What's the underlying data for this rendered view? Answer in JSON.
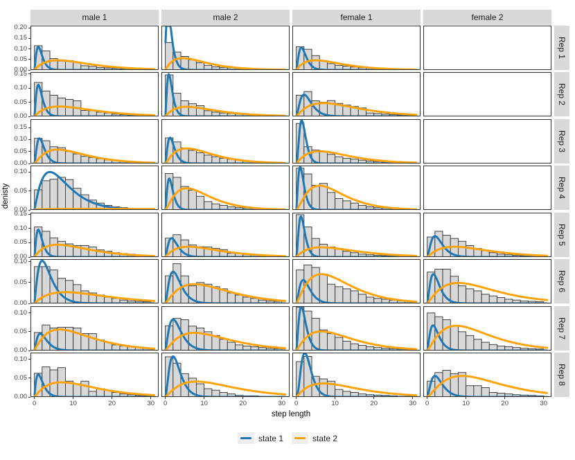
{
  "figure": {
    "y_axis_title": "denisty",
    "x_axis_title": "step length",
    "colors": {
      "state1": "#1F78B4",
      "state2": "#FFA30A",
      "bar_fill": "#D8D8D8",
      "bar_stroke": "#2F2F2F",
      "strip_bg": "#D9D9D9",
      "panel_border": "#2F2F2F"
    },
    "legend": [
      {
        "label": "state 1"
      },
      {
        "label": "state 2"
      }
    ]
  },
  "chart_data": {
    "type": "faceted-histogram-density",
    "facet_cols": [
      "male 1",
      "male 2",
      "female 1",
      "female 2"
    ],
    "facet_rows": [
      "Rep 1",
      "Rep 2",
      "Rep 3",
      "Rep 4",
      "Rep 5",
      "Rep 6",
      "Rep 7",
      "Rep 8"
    ],
    "x_range": [
      0,
      30
    ],
    "bin_width": 2,
    "x_ticks": [
      0,
      10,
      20,
      30
    ],
    "series_names": [
      "state 1",
      "state 2"
    ],
    "rows": [
      {
        "label": "Rep 1",
        "ymax": 0.21,
        "yticks": [
          0,
          0.05,
          0.1,
          0.15,
          0.2
        ],
        "panels": [
          {
            "bars": [
              0.115,
              0.09,
              0.054,
              0.042,
              0.044,
              0.036,
              0.02,
              0.017,
              0.012,
              0.01,
              0.008,
              0.006,
              0.005,
              0.004,
              0.007
            ],
            "state1": {
              "mode": 1,
              "peak": 0.11,
              "shape": 1.6
            },
            "state2": {
              "mode": 6,
              "peak": 0.046,
              "shape": 1.0
            }
          },
          {
            "bars": [
              0.13,
              0.085,
              0.064,
              0.048,
              0.034,
              0.022,
              0.015,
              0.012,
              0.01,
              0.008,
              0.006,
              0.005,
              0.004,
              0.003,
              0.003
            ],
            "state1": {
              "mode": 0.5,
              "peak": 0.35,
              "shape": 0.7
            },
            "state2": {
              "mode": 4.5,
              "peak": 0.056,
              "shape": 1.0
            }
          },
          {
            "bars": [
              0.11,
              0.098,
              0.068,
              0.044,
              0.03,
              0.022,
              0.018,
              0.014,
              0.01,
              0.008,
              0.006,
              0.005,
              0.004,
              0.003,
              0.003
            ],
            "state1": {
              "mode": 1.3,
              "peak": 0.106,
              "shape": 1.8
            },
            "state2": {
              "mode": 5,
              "peak": 0.046,
              "shape": 1.0
            }
          },
          null
        ]
      },
      {
        "label": "Rep 2",
        "ymax": 0.157,
        "yticks": [
          0,
          0.05,
          0.1,
          0.15
        ],
        "panels": [
          {
            "bars": [
              0.12,
              0.09,
              0.075,
              0.065,
              0.06,
              0.055,
              0.021,
              0.02,
              0.015,
              0.012,
              0.008,
              0.006,
              0.005,
              0.004,
              0.006
            ],
            "state1": {
              "mode": 1,
              "peak": 0.112,
              "shape": 1.6
            },
            "state2": {
              "mode": 6.5,
              "peak": 0.035,
              "shape": 1.0
            }
          },
          {
            "bars": [
              0.147,
              0.082,
              0.055,
              0.045,
              0.038,
              0.02,
              0.015,
              0.012,
              0.01,
              0.008,
              0.006,
              0.005,
              0.004,
              0.003,
              0.002
            ],
            "state1": {
              "mode": 0.9,
              "peak": 0.15,
              "shape": 1.7
            },
            "state2": {
              "mode": 5.5,
              "peak": 0.034,
              "shape": 1.0
            }
          },
          {
            "bars": [
              0.075,
              0.088,
              0.055,
              0.05,
              0.056,
              0.046,
              0.04,
              0.035,
              0.03,
              0.012,
              0.01,
              0.008,
              0.006,
              0.005,
              0.004
            ],
            "state1": {
              "mode": 2,
              "peak": 0.077,
              "shape": 1.8
            },
            "state2": {
              "mode": 7,
              "peak": 0.047,
              "shape": 1.1
            }
          },
          null
        ]
      },
      {
        "label": "Rep 3",
        "ymax": 0.185,
        "yticks": [
          0,
          0.05,
          0.1,
          0.15
        ],
        "panels": [
          {
            "bars": [
              0.105,
              0.095,
              0.07,
              0.066,
              0.05,
              0.04,
              0.03,
              0.025,
              0.02,
              0.015,
              0.012,
              0.01,
              0.008,
              0.006,
              0.005
            ],
            "state1": {
              "mode": 1.3,
              "peak": 0.105,
              "shape": 1.8
            },
            "state2": {
              "mode": 6,
              "peak": 0.058,
              "shape": 1.2
            }
          },
          {
            "bars": [
              0.107,
              0.09,
              0.065,
              0.055,
              0.045,
              0.035,
              0.028,
              0.022,
              0.018,
              0.014,
              0.01,
              0.008,
              0.006,
              0.005,
              0.004
            ],
            "state1": {
              "mode": 1.2,
              "peak": 0.108,
              "shape": 1.8
            },
            "state2": {
              "mode": 5.5,
              "peak": 0.063,
              "shape": 1.2
            }
          },
          {
            "bars": [
              0.167,
              0.07,
              0.056,
              0.05,
              0.038,
              0.028,
              0.022,
              0.018,
              0.014,
              0.01,
              0.008,
              0.006,
              0.005,
              0.004,
              0.003
            ],
            "state1": {
              "mode": 1.4,
              "peak": 0.18,
              "shape": 2.7
            },
            "state2": {
              "mode": 6,
              "peak": 0.051,
              "shape": 1.1
            }
          },
          null
        ]
      },
      {
        "label": "Rep 4",
        "ymax": 0.117,
        "yticks": [
          0,
          0.05,
          0.1
        ],
        "panels": [
          {
            "bars": [
              0.053,
              0.077,
              0.081,
              0.086,
              0.08,
              0.057,
              0.04,
              0.026,
              0.018,
              0.012,
              0.008,
              0.006,
              0.004,
              0.003,
              0.002
            ],
            "state1": {
              "mode": 4,
              "peak": 0.1,
              "shape": 1.15
            },
            "state2": {
              "mode": 15,
              "peak": 0.0025,
              "shape": 0.3
            }
          },
          {
            "bars": [
              0.096,
              0.086,
              0.062,
              0.052,
              0.036,
              0.022,
              0.016,
              0.012,
              0.008,
              0.006,
              0.005,
              0.004,
              0.003,
              0.002,
              0.002
            ],
            "state1": {
              "mode": 1,
              "peak": 0.083,
              "shape": 1.8
            },
            "state2": {
              "mode": 5.5,
              "peak": 0.057,
              "shape": 1.4
            }
          },
          {
            "bars": [
              0.11,
              0.095,
              0.065,
              0.07,
              0.046,
              0.03,
              0.024,
              0.018,
              0.012,
              0.008,
              0.006,
              0.005,
              0.004,
              0.003,
              0.002
            ],
            "state1": {
              "mode": 1,
              "peak": 0.114,
              "shape": 1.8
            },
            "state2": {
              "mode": 6,
              "peak": 0.064,
              "shape": 1.5
            }
          },
          null
        ]
      },
      {
        "label": "Rep 5",
        "ymax": 0.155,
        "yticks": [
          0,
          0.05,
          0.1,
          0.15
        ],
        "panels": [
          {
            "bars": [
              0.105,
              0.09,
              0.067,
              0.055,
              0.046,
              0.04,
              0.04,
              0.035,
              0.025,
              0.02,
              0.015,
              0.012,
              0.01,
              0.006,
              0.004
            ],
            "state1": {
              "mode": 1,
              "peak": 0.096,
              "shape": 1.6
            },
            "state2": {
              "mode": 6,
              "peak": 0.043,
              "shape": 1.0
            }
          },
          {
            "bars": [
              0.066,
              0.078,
              0.06,
              0.042,
              0.036,
              0.035,
              0.03,
              0.026,
              0.013,
              0.012,
              0.008,
              0.007,
              0.006,
              0.005,
              0.004
            ],
            "state1": {
              "mode": 1.6,
              "peak": 0.066,
              "shape": 1.7
            },
            "state2": {
              "mode": 6,
              "peak": 0.036,
              "shape": 1.0
            }
          },
          {
            "bars": [
              0.148,
              0.105,
              0.065,
              0.045,
              0.035,
              0.03,
              0.02,
              0.015,
              0.01,
              0.008,
              0.006,
              0.005,
              0.004,
              0.003,
              0.002
            ],
            "state1": {
              "mode": 1.2,
              "peak": 0.142,
              "shape": 2.2
            },
            "state2": {
              "mode": 6.5,
              "peak": 0.034,
              "shape": 1.0
            }
          },
          {
            "bars": [
              0.07,
              0.09,
              0.076,
              0.065,
              0.055,
              0.04,
              0.03,
              0.022,
              0.015,
              0.01,
              0.008,
              0.006,
              0.005,
              0.004,
              0.003
            ],
            "state1": {
              "mode": 2,
              "peak": 0.073,
              "shape": 1.8
            },
            "state2": {
              "mode": 7,
              "peak": 0.036,
              "shape": 1.1
            }
          }
        ]
      },
      {
        "label": "Rep 6",
        "ymax": 0.106,
        "yticks": [
          0,
          0.05,
          0.1
        ],
        "panels": [
          {
            "bars": [
              0.088,
              0.088,
              0.08,
              0.06,
              0.055,
              0.045,
              0.03,
              0.025,
              0.02,
              0.015,
              0.012,
              0.008,
              0.006,
              0.005,
              0.004
            ],
            "state1": {
              "mode": 2,
              "peak": 0.102,
              "shape": 1.3
            },
            "state2": {
              "mode": 8,
              "peak": 0.027,
              "shape": 1.0
            }
          },
          {
            "bars": [
              0.066,
              0.095,
              0.066,
              0.042,
              0.05,
              0.046,
              0.04,
              0.035,
              0.025,
              0.02,
              0.015,
              0.012,
              0.008,
              0.006,
              0.005
            ],
            "state1": {
              "mode": 2,
              "peak": 0.076,
              "shape": 1.7
            },
            "state2": {
              "mode": 7.5,
              "peak": 0.046,
              "shape": 1.2
            }
          },
          {
            "bars": [
              0.08,
              0.092,
              0.086,
              0.07,
              0.046,
              0.04,
              0.035,
              0.03,
              0.022,
              0.015,
              0.012,
              0.01,
              0.008,
              0.006,
              0.005
            ],
            "state1": {
              "mode": 1.8,
              "peak": 0.056,
              "shape": 1.8
            },
            "state2": {
              "mode": 6.5,
              "peak": 0.07,
              "shape": 1.3
            }
          },
          {
            "bars": [
              0.075,
              0.082,
              0.082,
              0.065,
              0.042,
              0.035,
              0.03,
              0.022,
              0.018,
              0.014,
              0.01,
              0.008,
              0.006,
              0.005,
              0.004
            ],
            "state1": {
              "mode": 1.6,
              "peak": 0.07,
              "shape": 1.7
            },
            "state2": {
              "mode": 8,
              "peak": 0.049,
              "shape": 1.2
            }
          }
        ]
      },
      {
        "label": "Rep 7",
        "ymax": 0.118,
        "yticks": [
          0,
          0.05,
          0.1
        ],
        "panels": [
          {
            "bars": [
              0.048,
              0.068,
              0.06,
              0.062,
              0.062,
              0.06,
              0.045,
              0.045,
              0.028,
              0.022,
              0.015,
              0.012,
              0.01,
              0.008,
              0.006
            ],
            "state1": {
              "mode": 1.5,
              "peak": 0.045,
              "shape": 1.4
            },
            "state2": {
              "mode": 6.5,
              "peak": 0.056,
              "shape": 1.1
            }
          },
          {
            "bars": [
              0.066,
              0.086,
              0.082,
              0.065,
              0.06,
              0.05,
              0.04,
              0.03,
              0.022,
              0.015,
              0.012,
              0.01,
              0.008,
              0.006,
              0.005
            ],
            "state1": {
              "mode": 2,
              "peak": 0.083,
              "shape": 1.6
            },
            "state2": {
              "mode": 7.5,
              "peak": 0.047,
              "shape": 1.2
            }
          },
          {
            "bars": [
              0.115,
              0.105,
              0.086,
              0.055,
              0.045,
              0.035,
              0.025,
              0.018,
              0.014,
              0.01,
              0.008,
              0.006,
              0.005,
              0.004,
              0.003
            ],
            "state1": {
              "mode": 1.3,
              "peak": 0.116,
              "shape": 1.9
            },
            "state2": {
              "mode": 6.5,
              "peak": 0.051,
              "shape": 1.2
            }
          },
          {
            "bars": [
              0.1,
              0.09,
              0.082,
              0.065,
              0.05,
              0.04,
              0.03,
              0.022,
              0.016,
              0.012,
              0.01,
              0.008,
              0.006,
              0.005,
              0.004
            ],
            "state1": {
              "mode": 1.5,
              "peak": 0.067,
              "shape": 1.7
            },
            "state2": {
              "mode": 7.5,
              "peak": 0.066,
              "shape": 1.3
            }
          }
        ]
      },
      {
        "label": "Rep 8",
        "ymax": 0.118,
        "yticks": [
          0,
          0.05,
          0.1
        ],
        "panels": [
          {
            "bars": [
              0.063,
              0.08,
              0.072,
              0.078,
              0.042,
              0.035,
              0.042,
              0.015,
              0.022,
              0.018,
              0.012,
              0.008,
              0.006,
              0.004,
              0.003
            ],
            "state1": {
              "mode": 1,
              "peak": 0.06,
              "shape": 1.2
            },
            "state2": {
              "mode": 7,
              "peak": 0.039,
              "shape": 1.1
            }
          },
          {
            "bars": [
              0.107,
              0.09,
              0.062,
              0.05,
              0.035,
              0.022,
              0.018,
              0.012,
              0.008,
              0.004,
              0.003,
              0.003,
              0.002,
              0.002,
              0.002
            ],
            "state1": {
              "mode": 2,
              "peak": 0.108,
              "shape": 1.9
            },
            "state2": {
              "mode": 8,
              "peak": 0.041,
              "shape": 1.2
            }
          },
          {
            "bars": [
              0.094,
              0.108,
              0.055,
              0.048,
              0.042,
              0.02,
              0.015,
              0.012,
              0.008,
              0.006,
              0.005,
              0.004,
              0.003,
              0.002,
              0.002
            ],
            "state1": {
              "mode": 2.2,
              "peak": 0.117,
              "shape": 2.8
            },
            "state2": {
              "mode": 7,
              "peak": 0.036,
              "shape": 1.1
            }
          },
          {
            "bars": [
              0.042,
              0.065,
              0.071,
              0.062,
              0.065,
              0.03,
              0.03,
              0.025,
              0.012,
              0.01,
              0.008,
              0.006,
              0.005,
              0.004,
              0.003
            ],
            "state1": {
              "mode": 2,
              "peak": 0.056,
              "shape": 1.8
            },
            "state2": {
              "mode": 9,
              "peak": 0.056,
              "shape": 1.4
            }
          }
        ]
      }
    ]
  }
}
